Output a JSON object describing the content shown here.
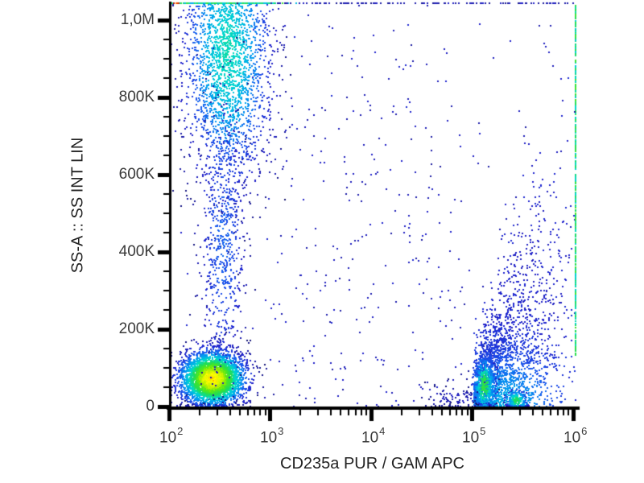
{
  "figure": {
    "background": "#ffffff",
    "axis_color": "#000000",
    "label_color": "#3a3a3a"
  },
  "chart_data": {
    "type": "scatter",
    "subtype": "flow-cytometry-density-dot-plot",
    "xlabel": "CD235a PUR / GAM APC",
    "ylabel": "SS-A :: SS INT LIN",
    "x_scale": "log",
    "xlim_log": [
      2,
      6.024
    ],
    "x_ticks": [
      {
        "base": "10",
        "exp": "2",
        "log": 2
      },
      {
        "base": "10",
        "exp": "3",
        "log": 3
      },
      {
        "base": "10",
        "exp": "4",
        "log": 4
      },
      {
        "base": "10",
        "exp": "5",
        "log": 5
      },
      {
        "base": "10",
        "exp": "6",
        "log": 6
      }
    ],
    "x_minor_multiples": [
      2,
      3,
      4,
      5,
      6,
      7,
      8,
      9
    ],
    "y_scale": "linear",
    "ylim": [
      0,
      1043750
    ],
    "y_ticks": [
      {
        "label": "0",
        "value": 0
      },
      {
        "label": "200K",
        "value": 200000
      },
      {
        "label": "400K",
        "value": 400000
      },
      {
        "label": "600K",
        "value": 600000
      },
      {
        "label": "800K",
        "value": 800000
      },
      {
        "label": "1,0M",
        "value": 1000000
      }
    ],
    "y_minor_step": 50000,
    "seed": 1337,
    "point_size": 2,
    "colormap": {
      "stops": [
        [
          0.0,
          "#14146e"
        ],
        [
          0.18,
          "#2222cc"
        ],
        [
          0.32,
          "#1a55ee"
        ],
        [
          0.45,
          "#00a0f0"
        ],
        [
          0.58,
          "#00d8d0"
        ],
        [
          0.7,
          "#20dd55"
        ],
        [
          0.82,
          "#55e817"
        ],
        [
          0.9,
          "#b8f000"
        ],
        [
          1.0,
          "#ffff00"
        ],
        [
          1.12,
          "#ff5500"
        ],
        [
          1.25,
          "#8b0000"
        ]
      ]
    },
    "clusters": [
      {
        "name": "cd235a-neg-debris-blob",
        "type": "gaussian",
        "n": 3800,
        "cx": 2.43,
        "sx": 0.155,
        "cy": 72000,
        "sy": 34000,
        "peak": 1.02
      },
      {
        "name": "cd235a-neg-granulocyte-band-top",
        "type": "gaussian",
        "n": 2600,
        "cx": 2.58,
        "sx": 0.21,
        "cy": 915000,
        "sy": 165000,
        "peak": 0.6
      },
      {
        "name": "cd235a-neg-band-mid",
        "type": "gaussian",
        "n": 650,
        "cx": 2.53,
        "sx": 0.12,
        "cy": 430000,
        "sy": 190000,
        "peak": 0.34
      },
      {
        "name": "mid-sparse-scatter",
        "type": "uniform",
        "n": 240,
        "x0": 2.95,
        "x1": 4.9,
        "ypow": 1.4,
        "ymax": 1000000,
        "t": 0.12
      },
      {
        "name": "cd235a-pos-erythroid-fan",
        "type": "fan",
        "n": 2400,
        "x0": 5.02,
        "sx": 0.42,
        "sy0": 50000,
        "syk": 330000,
        "tb": 0.18,
        "ta": 0.3,
        "tcx": 5.35,
        "tcs": 0.5,
        "tys": 130000
      },
      {
        "name": "erythroid-hotspot-1",
        "type": "gaussian",
        "n": 380,
        "cx": 5.12,
        "sx": 0.055,
        "cy": 55000,
        "sy": 38000,
        "peak": 0.74
      },
      {
        "name": "erythroid-hotspot-2",
        "type": "gaussian",
        "n": 200,
        "cx": 5.44,
        "sx": 0.05,
        "cy": 15000,
        "sy": 14000,
        "peak": 0.72
      },
      {
        "name": "erythroid-lead-in",
        "type": "gaussian",
        "n": 80,
        "cx": 4.82,
        "sx": 0.16,
        "cy": 22000,
        "sy": 20000,
        "peak": 0.15
      },
      {
        "name": "top-edge-pileup-sparse",
        "type": "toprow",
        "n": 120,
        "x0": 3.0,
        "x1": 6.0,
        "t": 0.12
      },
      {
        "name": "top-left-corner-red-pileup",
        "type": "toprow",
        "n": 10,
        "x0": 2.005,
        "x1": 2.1,
        "t": 1.16
      },
      {
        "name": "right-edge-pileup",
        "type": "edgecol",
        "n": 420,
        "y0": 130000,
        "y1": 1040000,
        "t0": 0.55,
        "t1": 0.78
      },
      {
        "name": "global-sparse",
        "type": "uniform",
        "n": 140,
        "x0": 2.0,
        "x1": 6.02,
        "ypow": 1.0,
        "ymax": 1040000,
        "t": 0.12
      }
    ]
  }
}
